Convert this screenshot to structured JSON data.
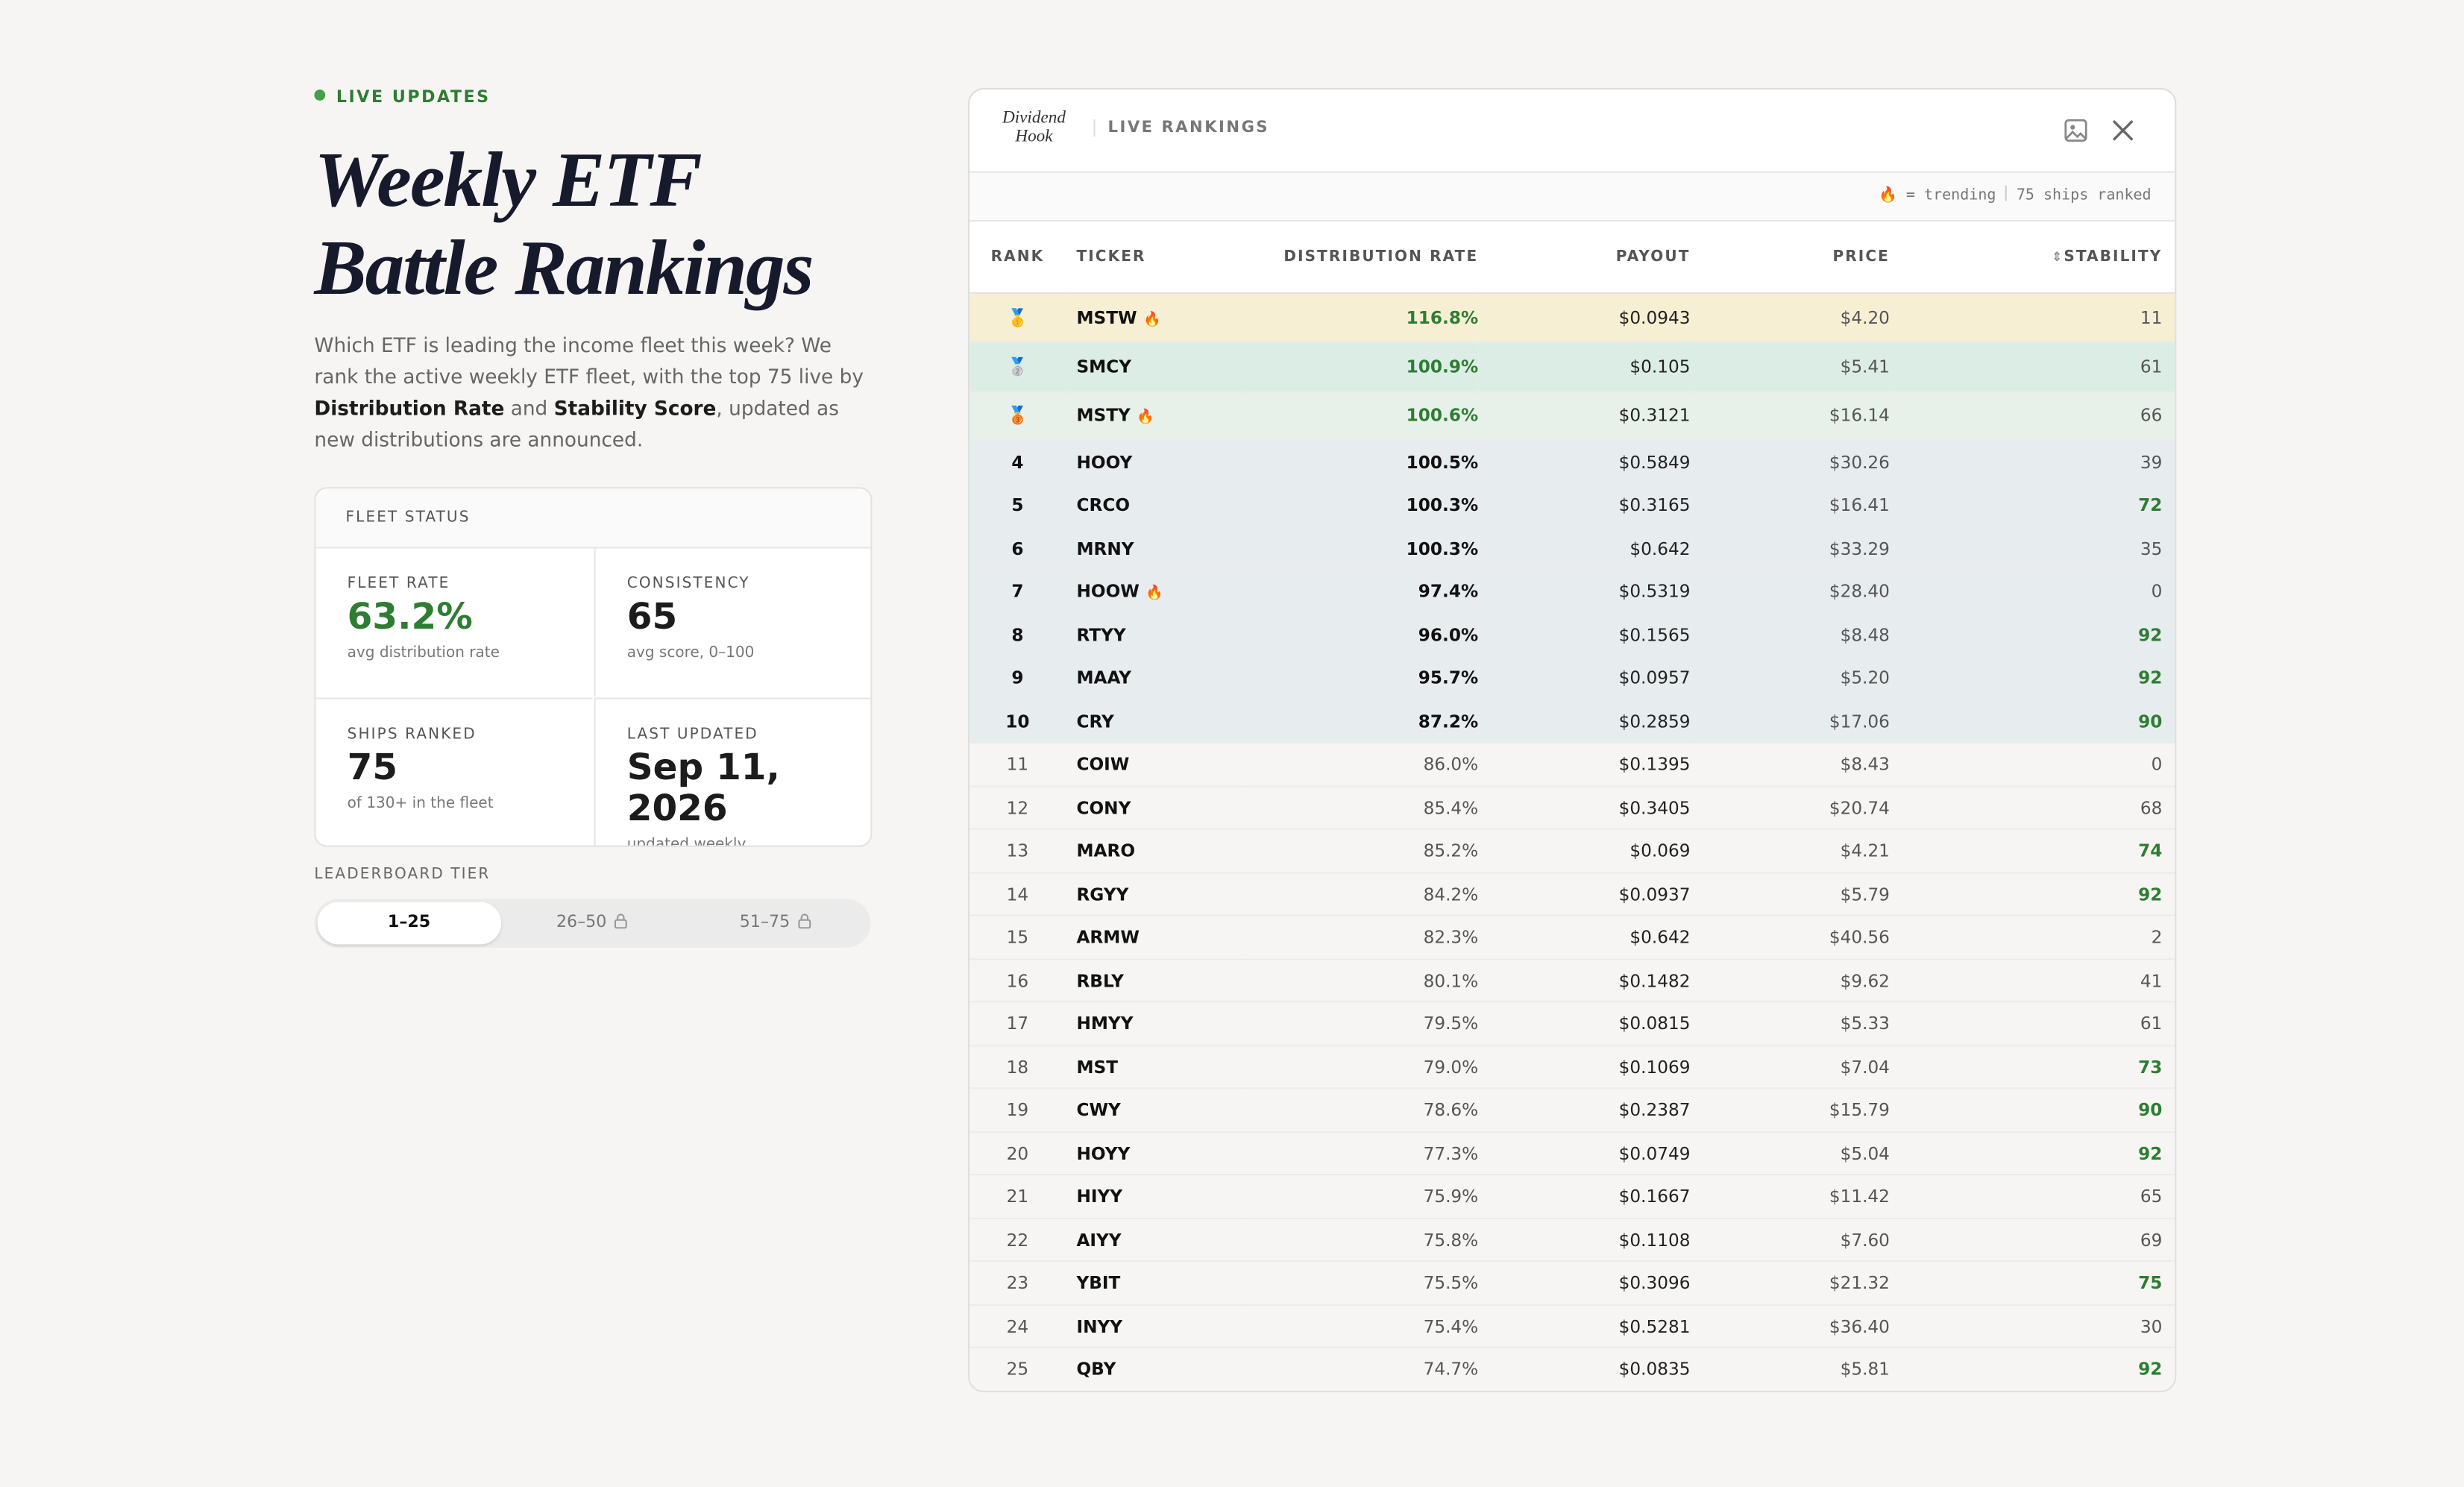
{
  "header": {
    "badge": "LIVE UPDATES",
    "title_lines": [
      "Weekly ETF",
      "Battle Rankings"
    ],
    "description": [
      {
        "text": "Which ETF is leading the income fleet this week? We rank the active weekly ETF fleet, with the top 75 live by ",
        "bold": false
      },
      {
        "text": "Distribution Rate",
        "bold": true
      },
      {
        "text": " and ",
        "bold": false
      },
      {
        "text": "Stability Score",
        "bold": true
      },
      {
        "text": ", updated as new distributions are announced.",
        "bold": false
      }
    ]
  },
  "fleet_status": {
    "title": "FLEET STATUS",
    "stats": [
      {
        "label": "FLEET RATE",
        "value": "63.2%",
        "note": "avg distribution rate",
        "accent": true
      },
      {
        "label": "CONSISTENCY",
        "value": "65",
        "note": "avg score, 0–100",
        "accent": false
      },
      {
        "label": "SHIPS RANKED",
        "value": "75",
        "note": "of 130+ in the fleet",
        "accent": false
      },
      {
        "label": "LAST UPDATED",
        "value": "Sep 11, 2026",
        "note": "updated weekly",
        "accent": false
      }
    ]
  },
  "tier": {
    "label": "LEADERBOARD TIER",
    "options": [
      {
        "text": "1–25",
        "active": true,
        "locked": false
      },
      {
        "text": "26–50",
        "active": false,
        "locked": true
      },
      {
        "text": "51–75",
        "active": false,
        "locked": true
      }
    ]
  },
  "panel": {
    "logo": "Dividend Hook",
    "title": "LIVE RANKINGS",
    "legend": "🔥 = trending",
    "count": "75 ships ranked",
    "columns": [
      "RANK",
      "TICKER",
      "DISTRIBUTION RATE",
      "PAYOUT",
      "PRICE",
      "STABILITY"
    ],
    "rows": [
      {
        "rank": "🥇",
        "ticker": "MSTW",
        "trending": true,
        "rate": "116.8%",
        "payout": "$0.0943",
        "price": "$4.20",
        "stability": 11
      },
      {
        "rank": "🥈",
        "ticker": "SMCY",
        "trending": false,
        "rate": "100.9%",
        "payout": "$0.105",
        "price": "$5.41",
        "stability": 61
      },
      {
        "rank": "🥉",
        "ticker": "MSTY",
        "trending": true,
        "rate": "100.6%",
        "payout": "$0.3121",
        "price": "$16.14",
        "stability": 66
      },
      {
        "rank": 4,
        "ticker": "HOOY",
        "trending": false,
        "rate": "100.5%",
        "payout": "$0.5849",
        "price": "$30.26",
        "stability": 39
      },
      {
        "rank": 5,
        "ticker": "CRCO",
        "trending": false,
        "rate": "100.3%",
        "payout": "$0.3165",
        "price": "$16.41",
        "stability": 72
      },
      {
        "rank": 6,
        "ticker": "MRNY",
        "trending": false,
        "rate": "100.3%",
        "payout": "$0.642",
        "price": "$33.29",
        "stability": 35
      },
      {
        "rank": 7,
        "ticker": "HOOW",
        "trending": true,
        "rate": "97.4%",
        "payout": "$0.5319",
        "price": "$28.40",
        "stability": 0
      },
      {
        "rank": 8,
        "ticker": "RTYY",
        "trending": false,
        "rate": "96.0%",
        "payout": "$0.1565",
        "price": "$8.48",
        "stability": 92
      },
      {
        "rank": 9,
        "ticker": "MAAY",
        "trending": false,
        "rate": "95.7%",
        "payout": "$0.0957",
        "price": "$5.20",
        "stability": 92
      },
      {
        "rank": 10,
        "ticker": "CRY",
        "trending": false,
        "rate": "87.2%",
        "payout": "$0.2859",
        "price": "$17.06",
        "stability": 90
      },
      {
        "rank": 11,
        "ticker": "COIW",
        "trending": false,
        "rate": "86.0%",
        "payout": "$0.1395",
        "price": "$8.43",
        "stability": 0
      },
      {
        "rank": 12,
        "ticker": "CONY",
        "trending": false,
        "rate": "85.4%",
        "payout": "$0.3405",
        "price": "$20.74",
        "stability": 68
      },
      {
        "rank": 13,
        "ticker": "MARO",
        "trending": false,
        "rate": "85.2%",
        "payout": "$0.069",
        "price": "$4.21",
        "stability": 74
      },
      {
        "rank": 14,
        "ticker": "RGYY",
        "trending": false,
        "rate": "84.2%",
        "payout": "$0.0937",
        "price": "$5.79",
        "stability": 92
      },
      {
        "rank": 15,
        "ticker": "ARMW",
        "trending": false,
        "rate": "82.3%",
        "payout": "$0.642",
        "price": "$40.56",
        "stability": 2
      },
      {
        "rank": 16,
        "ticker": "RBLY",
        "trending": false,
        "rate": "80.1%",
        "payout": "$0.1482",
        "price": "$9.62",
        "stability": 41
      },
      {
        "rank": 17,
        "ticker": "HMYY",
        "trending": false,
        "rate": "79.5%",
        "payout": "$0.0815",
        "price": "$5.33",
        "stability": 61
      },
      {
        "rank": 18,
        "ticker": "MST",
        "trending": false,
        "rate": "79.0%",
        "payout": "$0.1069",
        "price": "$7.04",
        "stability": 73
      },
      {
        "rank": 19,
        "ticker": "CWY",
        "trending": false,
        "rate": "78.6%",
        "payout": "$0.2387",
        "price": "$15.79",
        "stability": 90
      },
      {
        "rank": 20,
        "ticker": "HOYY",
        "trending": false,
        "rate": "77.3%",
        "payout": "$0.0749",
        "price": "$5.04",
        "stability": 92
      },
      {
        "rank": 21,
        "ticker": "HIYY",
        "trending": false,
        "rate": "75.9%",
        "payout": "$0.1667",
        "price": "$11.42",
        "stability": 65
      },
      {
        "rank": 22,
        "ticker": "AIYY",
        "trending": false,
        "rate": "75.8%",
        "payout": "$0.1108",
        "price": "$7.60",
        "stability": 69
      },
      {
        "rank": 23,
        "ticker": "YBIT",
        "trending": false,
        "rate": "75.5%",
        "payout": "$0.3096",
        "price": "$21.32",
        "stability": 75
      },
      {
        "rank": 24,
        "ticker": "INYY",
        "trending": false,
        "rate": "75.4%",
        "payout": "$0.5281",
        "price": "$36.40",
        "stability": 30
      },
      {
        "rank": 25,
        "ticker": "QBY",
        "trending": false,
        "rate": "74.7%",
        "payout": "$0.0835",
        "price": "$5.81",
        "stability": 92
      }
    ]
  }
}
